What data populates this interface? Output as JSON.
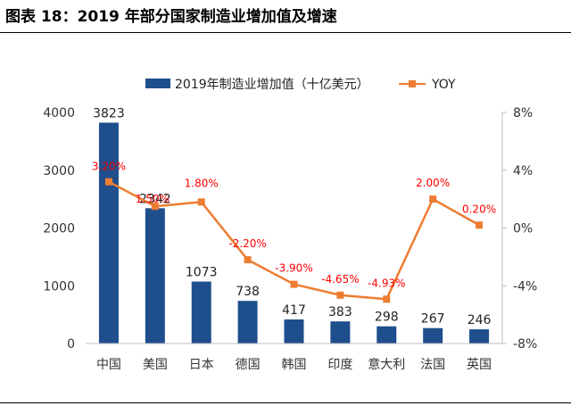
{
  "figure_title": "图表 18：2019 年部分国家制造业增加值及增速",
  "colors": {
    "bar": "#1f4e8c",
    "line": "#ed7d31",
    "yoy_label": "#ff0000",
    "axis": "#bfbfbf"
  },
  "chart_data": {
    "type": "bar",
    "title": "",
    "categories": [
      "中国",
      "美国",
      "日本",
      "德国",
      "韩国",
      "印度",
      "意大利",
      "法国",
      "英国"
    ],
    "series": [
      {
        "name": "2019年制造业增加值（十亿美元）",
        "type": "bar",
        "axis": "left",
        "values": [
          3823,
          2342,
          1073,
          738,
          417,
          383,
          298,
          267,
          246
        ],
        "labels": [
          "3823",
          "2342",
          "1073",
          "738",
          "417",
          "383",
          "298",
          "267",
          "246"
        ]
      },
      {
        "name": "YOY",
        "type": "line",
        "axis": "right",
        "values": [
          3.2,
          1.5,
          1.8,
          -2.2,
          -3.9,
          -4.65,
          -4.93,
          2.0,
          0.2
        ],
        "labels": [
          "3.20%",
          "1.50%",
          "1.80%",
          "-2.20%",
          "-3.90%",
          "-4.65%",
          "-4.93%",
          "2.00%",
          "0.20%"
        ]
      }
    ],
    "y_left": {
      "range": [
        0,
        4000
      ],
      "ticks": [
        "0",
        "1000",
        "2000",
        "3000",
        "4000"
      ]
    },
    "y_right": {
      "range": [
        -8,
        8
      ],
      "ticks": [
        "-8%",
        "-4%",
        "0%",
        "4%",
        "8%"
      ]
    },
    "legend_position": "top-center",
    "grid": false
  }
}
